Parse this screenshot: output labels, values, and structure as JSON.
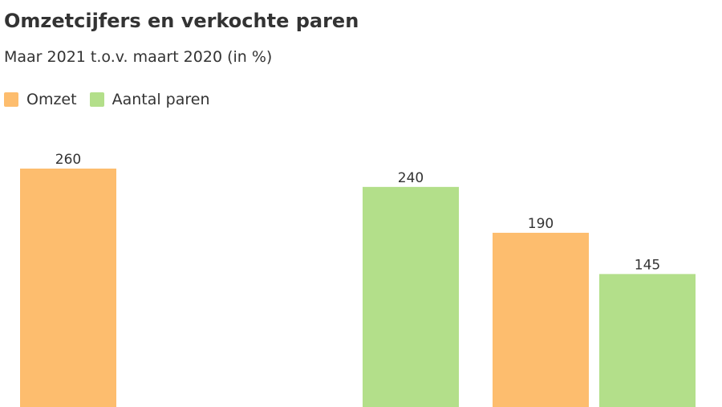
{
  "title": "Omzetcijfers en verkochte paren",
  "subtitle": "Maar 2021 t.o.v. maart 2020 (in %)",
  "colors": {
    "omzet": "#FDBD6E",
    "paren": "#B3DF8A"
  },
  "chart_data": {
    "type": "bar",
    "title": "Omzetcijfers en verkochte paren",
    "subtitle": "Maar 2021 t.o.v. maart 2020 (in %)",
    "xlabel": "",
    "ylabel": "",
    "ylim": [
      0,
      260
    ],
    "grid": false,
    "legend_position": "top-left",
    "legend": [
      "Omzet",
      "Aantal paren"
    ],
    "bars": [
      {
        "series": "Omzet",
        "value": 260,
        "label": "260"
      },
      {
        "series": "Omzet",
        "value": null,
        "label": ""
      },
      {
        "series": "Aantal paren",
        "value": 240,
        "label": "240"
      },
      {
        "series": "Omzet",
        "value": 190,
        "label": "190"
      },
      {
        "series": "Aantal paren",
        "value": 145,
        "label": "145"
      }
    ]
  }
}
